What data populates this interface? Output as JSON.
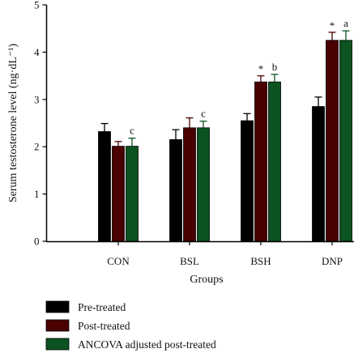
{
  "chart_data": {
    "type": "bar",
    "xlabel": "Groups",
    "ylabel": "Serum testosterone level (ng·dL⁻¹)",
    "ylim": [
      0,
      5
    ],
    "yticks": [
      "0",
      "1",
      "2",
      "3",
      "4",
      "5"
    ],
    "categories": [
      "CON",
      "BSL",
      "BSH",
      "DNP"
    ],
    "series": [
      {
        "name": "Pre-treated",
        "color": "#000000",
        "values": [
          2.32,
          2.15,
          2.55,
          2.85
        ],
        "errors": [
          0.17,
          0.21,
          0.15,
          0.2
        ]
      },
      {
        "name": "Post-treated",
        "color": "#4a0000",
        "values": [
          2.01,
          2.4,
          3.37,
          4.25
        ],
        "errors": [
          0.1,
          0.21,
          0.13,
          0.17
        ]
      },
      {
        "name": "ANCOVA adjusted post-treated",
        "color": "#0b5320",
        "values": [
          2.01,
          2.4,
          3.37,
          4.25
        ],
        "errors": [
          0.17,
          0.14,
          0.16,
          0.2
        ]
      }
    ],
    "annotations": [
      {
        "category": "CON",
        "series": 2,
        "text": "c"
      },
      {
        "category": "BSL",
        "series": 2,
        "text": "c"
      },
      {
        "category": "BSH",
        "series": 1,
        "text": "*"
      },
      {
        "category": "BSH",
        "series": 2,
        "text": "b"
      },
      {
        "category": "DNP",
        "series": 1,
        "text": "*"
      },
      {
        "category": "DNP",
        "series": 2,
        "text": "a"
      }
    ],
    "legend_position": "bottom-left",
    "grid": false
  }
}
